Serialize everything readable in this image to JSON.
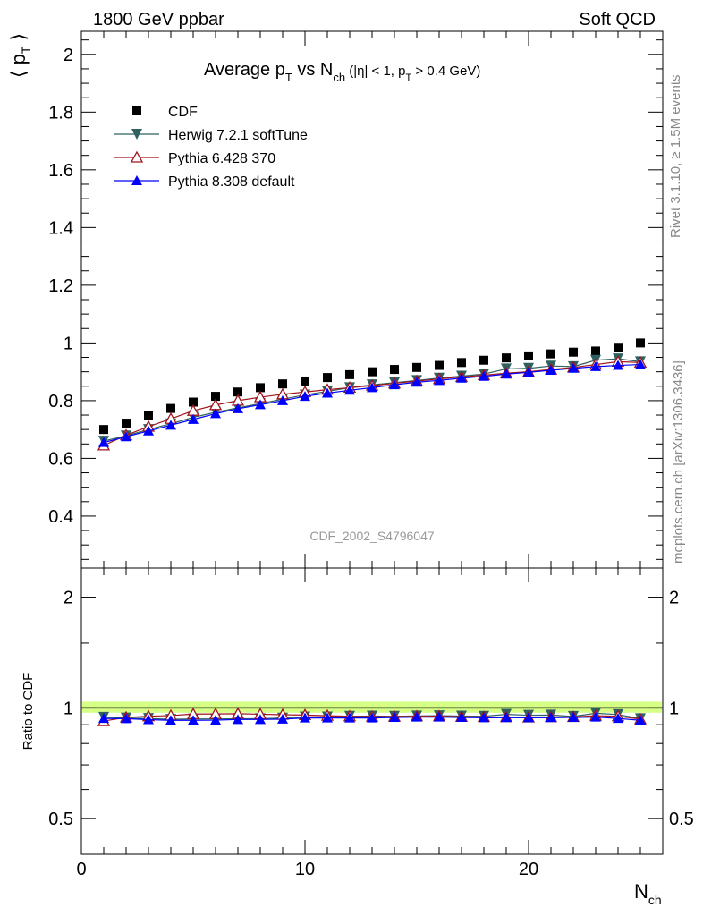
{
  "header": {
    "left": "1800 GeV ppbar",
    "right": "Soft QCD"
  },
  "side_text": {
    "rivet": "Rivet 3.1.10, ≥ 1.5M events",
    "source": "mcplots.cern.ch [arXiv:1306.3436]"
  },
  "analysis_id": "CDF_2002_S4796047",
  "chart_data": [
    {
      "type": "scatter",
      "panel": "main",
      "title": "Average pT vs Nch (|η| < 1, pT > 0.4 GeV)",
      "title_parts": {
        "a": "Average p",
        "b": "T",
        "c": " vs N",
        "d": "ch",
        "e": " (|η| < 1, p",
        "f": "T",
        "g": " > 0.4 GeV)"
      },
      "ylabel": "⟨ pT ⟩",
      "xlabel": "Nch",
      "xlim": [
        0,
        26
      ],
      "ylim": [
        0.22,
        2.08
      ],
      "xticks": [
        "0",
        "10",
        "20"
      ],
      "yticks": [
        "0.4",
        "0.6",
        "0.8",
        "1",
        "1.2",
        "1.4",
        "1.6",
        "1.8",
        "2"
      ],
      "legend_position": "top-left",
      "x": [
        1,
        2,
        3,
        4,
        5,
        6,
        7,
        8,
        9,
        10,
        11,
        12,
        13,
        14,
        15,
        16,
        17,
        18,
        19,
        20,
        21,
        22,
        23,
        24,
        25
      ],
      "series": [
        {
          "name": "CDF",
          "color": "#000000",
          "marker": "square",
          "values": [
            0.7,
            0.722,
            0.748,
            0.773,
            0.795,
            0.815,
            0.83,
            0.845,
            0.858,
            0.868,
            0.88,
            0.89,
            0.9,
            0.908,
            0.915,
            0.922,
            0.932,
            0.94,
            0.948,
            0.955,
            0.962,
            0.968,
            0.972,
            0.985,
            1.0
          ]
        },
        {
          "name": "Herwig 7.2.1 softTune",
          "color": "#2f6060",
          "marker": "triangle-down",
          "values": [
            0.66,
            0.678,
            0.7,
            0.72,
            0.742,
            0.76,
            0.775,
            0.79,
            0.805,
            0.82,
            0.832,
            0.845,
            0.855,
            0.862,
            0.87,
            0.878,
            0.885,
            0.892,
            0.91,
            0.912,
            0.92,
            0.918,
            0.94,
            0.945,
            0.935
          ]
        },
        {
          "name": "Pythia 6.428 370",
          "color": "#a0141e",
          "marker": "triangle-up-open",
          "values": [
            0.645,
            0.68,
            0.71,
            0.737,
            0.765,
            0.785,
            0.8,
            0.812,
            0.822,
            0.83,
            0.838,
            0.845,
            0.852,
            0.86,
            0.868,
            0.875,
            0.882,
            0.888,
            0.895,
            0.9,
            0.908,
            0.915,
            0.925,
            0.935,
            0.932
          ]
        },
        {
          "name": "Pythia 8.308 default",
          "color": "#0000ff",
          "marker": "triangle-up",
          "values": [
            0.655,
            0.675,
            0.695,
            0.715,
            0.735,
            0.755,
            0.772,
            0.786,
            0.8,
            0.815,
            0.826,
            0.836,
            0.845,
            0.855,
            0.864,
            0.87,
            0.878,
            0.884,
            0.892,
            0.898,
            0.905,
            0.912,
            0.918,
            0.922,
            0.925
          ]
        }
      ]
    },
    {
      "type": "scatter",
      "panel": "ratio",
      "ylabel": "Ratio to CDF",
      "xlabel": "Nch",
      "xlim": [
        0,
        26
      ],
      "ylim": [
        0.4,
        2.4
      ],
      "log_y": true,
      "yticks": [
        "0.5",
        "1",
        "2"
      ],
      "band_color": "#ccff66",
      "x": [
        1,
        2,
        3,
        4,
        5,
        6,
        7,
        8,
        9,
        10,
        11,
        12,
        13,
        14,
        15,
        16,
        17,
        18,
        19,
        20,
        21,
        22,
        23,
        24,
        25
      ],
      "series": [
        {
          "name": "Herwig 7.2.1 softTune",
          "color": "#2f6060",
          "marker": "triangle-down",
          "values": [
            0.943,
            0.939,
            0.936,
            0.931,
            0.933,
            0.933,
            0.934,
            0.935,
            0.938,
            0.945,
            0.945,
            0.949,
            0.95,
            0.949,
            0.951,
            0.952,
            0.95,
            0.949,
            0.96,
            0.955,
            0.956,
            0.948,
            0.967,
            0.959,
            0.935
          ]
        },
        {
          "name": "Pythia 6.428 370",
          "color": "#a0141e",
          "marker": "triangle-up-open",
          "values": [
            0.921,
            0.942,
            0.949,
            0.953,
            0.962,
            0.963,
            0.964,
            0.961,
            0.958,
            0.956,
            0.952,
            0.949,
            0.947,
            0.947,
            0.949,
            0.949,
            0.946,
            0.945,
            0.944,
            0.942,
            0.944,
            0.945,
            0.952,
            0.949,
            0.932
          ]
        },
        {
          "name": "Pythia 8.308 default",
          "color": "#0000ff",
          "marker": "triangle-up",
          "values": [
            0.936,
            0.935,
            0.929,
            0.925,
            0.925,
            0.926,
            0.93,
            0.93,
            0.932,
            0.939,
            0.939,
            0.939,
            0.939,
            0.942,
            0.944,
            0.944,
            0.942,
            0.94,
            0.941,
            0.94,
            0.941,
            0.942,
            0.944,
            0.936,
            0.925
          ]
        }
      ]
    }
  ]
}
